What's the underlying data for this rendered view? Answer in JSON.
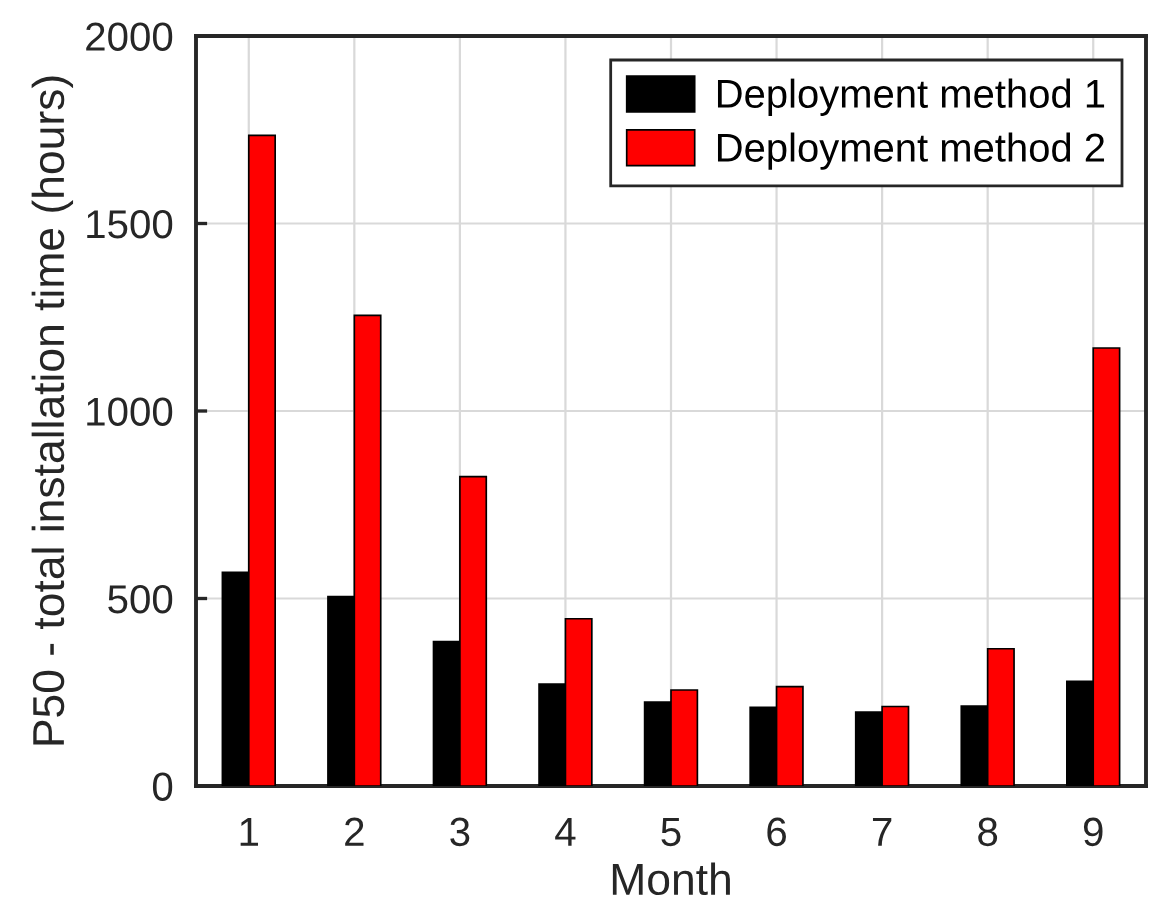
{
  "chart_data": {
    "type": "bar",
    "xlabel": "Month",
    "ylabel": "P50 - total installation time (hours)",
    "categories": [
      "1",
      "2",
      "3",
      "4",
      "5",
      "6",
      "7",
      "8",
      "9"
    ],
    "series": [
      {
        "name": "Deployment method 1",
        "color": "#000000",
        "values": [
          570,
          505,
          385,
          272,
          224,
          210,
          197,
          213,
          279
        ]
      },
      {
        "name": "Deployment method 2",
        "color": "#ff0000",
        "values": [
          1735,
          1255,
          825,
          446,
          256,
          265,
          212,
          366,
          1168
        ]
      }
    ],
    "ylim": [
      0,
      2000
    ],
    "yticks": [
      0,
      500,
      1000,
      1500,
      2000
    ],
    "grid": true,
    "legend": "top right"
  }
}
